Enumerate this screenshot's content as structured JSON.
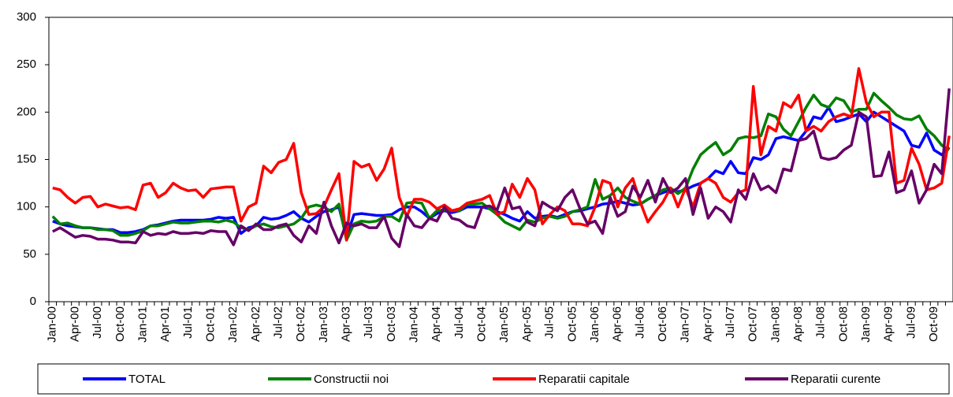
{
  "chart_data": {
    "type": "line",
    "categories": [
      "Jan-00",
      null,
      null,
      "Apr-00",
      null,
      null,
      "Jul-00",
      null,
      null,
      "Oct-00",
      null,
      null,
      "Jan-01",
      null,
      null,
      "Apr-01",
      null,
      null,
      "Jul-01",
      null,
      null,
      "Oct-01",
      null,
      null,
      "Jan-02",
      null,
      null,
      "Apr-02",
      null,
      null,
      "Jul-02",
      null,
      null,
      "Oct-02",
      null,
      null,
      "Jan-03",
      null,
      null,
      "Apr-03",
      null,
      null,
      "Jul-03",
      null,
      null,
      "Oct-03",
      null,
      null,
      "Jan-04",
      null,
      null,
      "Apr-04",
      null,
      null,
      "Jul-04",
      null,
      null,
      "Oct-04",
      null,
      null,
      "Jan-05",
      null,
      null,
      "Apr-05",
      null,
      null,
      "Jul-05",
      null,
      null,
      "Oct-05",
      null,
      null,
      "Jan-06",
      null,
      null,
      "Apr-06",
      null,
      null,
      "Jul-06",
      null,
      null,
      "Oct-06",
      null,
      null,
      "Jan-07",
      null,
      null,
      "Apr-07",
      null,
      null,
      "Jul-07",
      null,
      null,
      "Oct-07",
      null,
      null,
      "Jan-08",
      null,
      null,
      "Apr-08",
      null,
      null,
      "Jul-08",
      null,
      null,
      "Oct-08",
      null,
      null,
      "Jan-09",
      null,
      null,
      "Apr-09",
      null,
      null,
      "Jul-09",
      null,
      null,
      "Oct-09",
      null,
      null
    ],
    "series": [
      {
        "name": "TOTAL",
        "color": "#0000ff",
        "values": [
          85,
          82,
          80,
          79,
          78,
          78,
          77,
          76,
          76,
          73,
          73,
          74,
          76,
          80,
          81,
          83,
          85,
          86,
          86,
          86,
          86,
          87,
          89,
          88,
          89,
          72,
          78,
          80,
          89,
          87,
          88,
          91,
          95,
          88,
          84,
          90,
          95,
          97,
          100,
          68,
          92,
          93,
          92,
          91,
          91,
          92,
          97,
          100,
          100,
          95,
          88,
          93,
          96,
          94,
          96,
          100,
          100,
          100,
          98,
          95,
          92,
          88,
          85,
          95,
          88,
          90,
          91,
          89,
          92,
          95,
          96,
          98,
          100,
          103,
          104,
          106,
          104,
          102,
          103,
          108,
          112,
          115,
          118,
          116,
          118,
          122,
          125,
          130,
          138,
          135,
          148,
          136,
          135,
          152,
          150,
          155,
          172,
          174,
          172,
          170,
          180,
          195,
          193,
          205,
          190,
          192,
          195,
          198,
          190,
          200,
          195,
          190,
          185,
          180,
          165,
          163,
          178,
          160,
          155,
          163
        ]
      },
      {
        "name": "Constructii noi",
        "color": "#008000",
        "values": [
          90,
          82,
          83,
          80,
          78,
          78,
          76,
          76,
          75,
          70,
          70,
          72,
          75,
          80,
          80,
          82,
          84,
          83,
          83,
          84,
          85,
          85,
          84,
          86,
          84,
          78,
          76,
          80,
          82,
          79,
          78,
          80,
          82,
          88,
          100,
          102,
          100,
          95,
          103,
          65,
          82,
          85,
          84,
          85,
          90,
          90,
          85,
          104,
          105,
          104,
          88,
          96,
          97,
          96,
          96,
          103,
          103,
          104,
          98,
          92,
          84,
          80,
          76,
          86,
          84,
          88,
          90,
          88,
          90,
          95,
          97,
          100,
          129,
          108,
          112,
          120,
          110,
          106,
          103,
          108,
          112,
          118,
          120,
          114,
          120,
          140,
          155,
          162,
          168,
          155,
          160,
          172,
          174,
          173,
          175,
          198,
          195,
          182,
          175,
          190,
          205,
          218,
          208,
          205,
          215,
          212,
          200,
          203,
          203,
          220,
          212,
          205,
          197,
          193,
          192,
          196,
          182,
          175,
          165,
          160
        ]
      },
      {
        "name": "Reparatii capitale",
        "color": "#ff0000",
        "values": [
          120,
          118,
          110,
          104,
          110,
          111,
          100,
          103,
          101,
          99,
          100,
          97,
          123,
          125,
          110,
          115,
          125,
          120,
          117,
          118,
          110,
          119,
          120,
          121,
          121,
          85,
          100,
          104,
          143,
          136,
          147,
          150,
          167,
          115,
          92,
          93,
          100,
          118,
          135,
          65,
          148,
          142,
          145,
          128,
          140,
          162,
          110,
          90,
          108,
          108,
          105,
          98,
          102,
          96,
          98,
          104,
          106,
          108,
          112,
          92,
          95,
          124,
          110,
          130,
          118,
          82,
          92,
          100,
          96,
          82,
          82,
          80,
          100,
          128,
          125,
          100,
          120,
          130,
          105,
          84,
          95,
          105,
          120,
          100,
          120,
          100,
          125,
          130,
          125,
          110,
          105,
          115,
          118,
          227,
          155,
          185,
          180,
          210,
          205,
          218,
          180,
          185,
          180,
          190,
          195,
          198,
          195,
          246,
          210,
          195,
          200,
          200,
          125,
          128,
          162,
          145,
          118,
          120,
          125,
          175
        ]
      },
      {
        "name": "Reparatii curente",
        "color": "#660066",
        "values": [
          74,
          78,
          73,
          68,
          70,
          69,
          66,
          66,
          65,
          63,
          63,
          62,
          74,
          70,
          72,
          71,
          74,
          72,
          72,
          73,
          72,
          75,
          74,
          74,
          60,
          80,
          75,
          82,
          76,
          76,
          80,
          82,
          70,
          63,
          80,
          72,
          105,
          80,
          62,
          83,
          80,
          82,
          78,
          78,
          90,
          67,
          58,
          92,
          80,
          78,
          88,
          85,
          100,
          88,
          86,
          80,
          78,
          100,
          101,
          97,
          120,
          98,
          100,
          84,
          80,
          105,
          100,
          96,
          110,
          118,
          98,
          82,
          85,
          72,
          110,
          90,
          95,
          122,
          110,
          128,
          105,
          130,
          115,
          120,
          130,
          92,
          120,
          88,
          100,
          95,
          84,
          118,
          108,
          135,
          118,
          122,
          115,
          140,
          138,
          170,
          172,
          180,
          152,
          150,
          152,
          160,
          165,
          200,
          195,
          132,
          133,
          158,
          115,
          118,
          138,
          104,
          118,
          145,
          135,
          225
        ]
      }
    ],
    "ylim": [
      0,
      300
    ],
    "yticks": [
      0,
      50,
      100,
      150,
      200,
      250,
      300
    ],
    "grid": false,
    "legend_position": "bottom"
  }
}
